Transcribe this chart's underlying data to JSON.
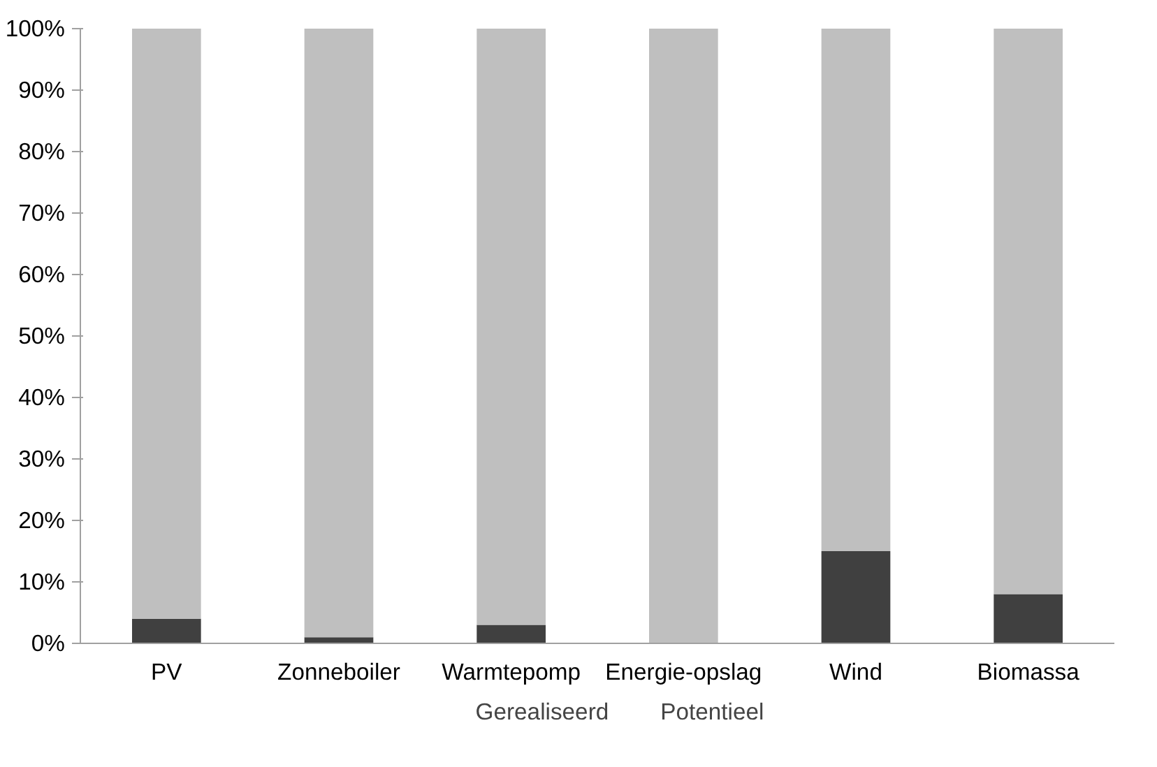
{
  "chart_data": {
    "type": "bar",
    "stacked": true,
    "categories": [
      "PV",
      "Zonneboiler",
      "Warmtepomp",
      "Energie-opslag",
      "Wind",
      "Biomassa"
    ],
    "series": [
      {
        "name": "Gerealiseerd",
        "color": "#404040",
        "values": [
          4,
          1,
          3,
          0,
          15,
          8
        ]
      },
      {
        "name": "Potentieel",
        "color": "#bfbfbf",
        "values": [
          96,
          99,
          97,
          100,
          85,
          92
        ]
      }
    ],
    "ylim": [
      0,
      100
    ],
    "yticks": [
      {
        "value": 0,
        "label": "0%"
      },
      {
        "value": 10,
        "label": "10%"
      },
      {
        "value": 20,
        "label": "20%"
      },
      {
        "value": 30,
        "label": "30%"
      },
      {
        "value": 40,
        "label": "40%"
      },
      {
        "value": 50,
        "label": "50%"
      },
      {
        "value": 60,
        "label": "60%"
      },
      {
        "value": 70,
        "label": "70%"
      },
      {
        "value": 80,
        "label": "80%"
      },
      {
        "value": 90,
        "label": "90%"
      },
      {
        "value": 100,
        "label": "100%"
      }
    ],
    "grid": false,
    "legend": "bottom"
  }
}
